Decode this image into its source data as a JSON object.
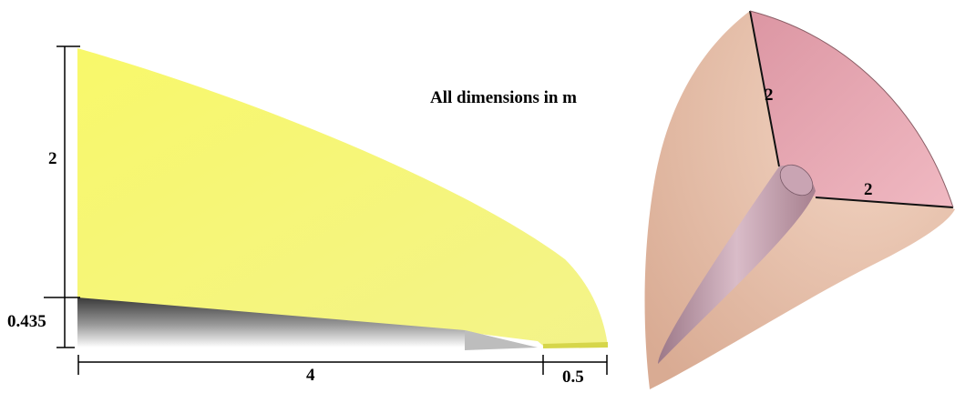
{
  "note": "All dimensions in m",
  "profile_view": {
    "height_label": "2",
    "base_thickness_label": "0.435",
    "length_label": "4",
    "tip_length_label": "0.5",
    "upper_region_color": "#f6f67a",
    "lower_region_color": "#6a6a6a"
  },
  "isometric_view": {
    "edge_label_1": "2",
    "edge_label_2": "2",
    "face_top_color": "#e8aab4",
    "face_side_color": "#ecc6b2",
    "body_color": "#b996a6"
  }
}
